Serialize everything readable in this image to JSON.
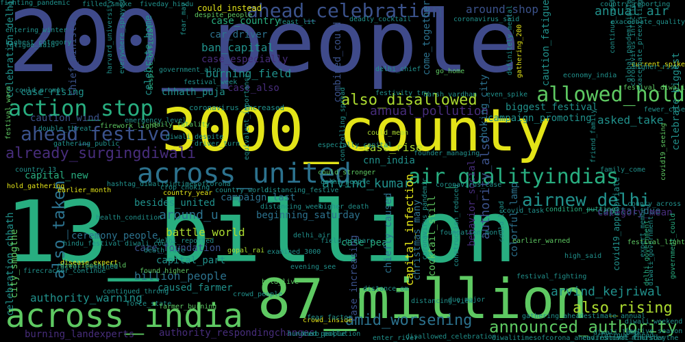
{
  "words": [
    {
      "text": "200_people",
      "color": "c-in",
      "icon": null
    },
    {
      "text": "13_billion",
      "color": "c-gr",
      "icon": null
    },
    {
      "text": "3000_county",
      "color": "c-ye",
      "icon": null
    },
    {
      "text": "87_million",
      "color": "c-lg",
      "icon": null
    },
    {
      "text": "across_india",
      "color": "c-lg",
      "icon": null
    },
    {
      "text": "across_united",
      "color": "c-tl",
      "icon": null
    },
    {
      "text": "action_stop",
      "color": "c-gr",
      "icon": null
    },
    {
      "text": "ahead_celebration",
      "color": "c-bl",
      "icon": null
    },
    {
      "text": "ahead_festive",
      "color": "c-bl",
      "icon": null
    },
    {
      "text": "already_surgingdiwali",
      "color": "c-pu",
      "icon": null
    },
    {
      "text": "allowed_hold",
      "color": "c-lg",
      "icon": null
    },
    {
      "text": "air_qualityindias",
      "color": "c-gr",
      "icon": null
    },
    {
      "text": "airnew_delhi",
      "color": "c-tq",
      "icon": null
    },
    {
      "text": "also_disallowed",
      "color": "c-yg",
      "icon": null
    },
    {
      "text": "announced_authority",
      "color": "c-lg",
      "icon": null
    },
    {
      "text": "also_rising",
      "color": "c-yg",
      "icon": null
    },
    {
      "text": "amid_worsening",
      "color": "c-tl",
      "icon": null
    },
    {
      "text": "arvind_kejriwal",
      "color": "c-tq",
      "icon": null
    },
    {
      "text": "arvind_kumar",
      "color": "c-tq",
      "icon": null
    },
    {
      "text": "also_taken",
      "color": "c-tl",
      "icon": null
    },
    {
      "text": "annual_air",
      "color": "c-tq",
      "icon": null
    },
    {
      "text": "annual_pollution",
      "color": "c-pu",
      "icon": null
    },
    {
      "text": "around_shop",
      "color": "c-bl",
      "icon": null
    },
    {
      "text": "around_u",
      "color": "c-tl",
      "icon": null
    },
    {
      "text": "authority_also",
      "color": "c-bl",
      "icon": null
    },
    {
      "text": "authority_warning",
      "color": "c-tq",
      "icon": null
    },
    {
      "text": "authority_respondingchanges",
      "color": "c-pu",
      "icon": null
    },
    {
      "text": "battle_world",
      "color": "c-yg",
      "icon": null
    },
    {
      "text": "besides_united",
      "color": "c-tq",
      "icon": null
    },
    {
      "text": "biggest_festival",
      "color": "c-tq",
      "icon": null
    },
    {
      "text": "billion_people",
      "color": "c-tl",
      "icon": null
    },
    {
      "text": "burning_field",
      "color": "c-tq",
      "icon": null
    },
    {
      "text": "burning_landexperts",
      "color": "c-pu",
      "icon": null
    },
    {
      "text": "ban_capital",
      "color": "c-tq",
      "icon": null
    },
    {
      "text": "behavior_social",
      "color": "c-pu",
      "icon": null
    },
    {
      "text": "beginning_saturday",
      "color": "c-tl",
      "icon": null
    },
    {
      "text": "campaign_last",
      "color": "c-tl",
      "icon": null
    },
    {
      "text": "campaign_promoting",
      "color": "c-tq",
      "icon": null
    },
    {
      "text": "capital_due",
      "color": "c-tl",
      "icon": null
    },
    {
      "text": "capital_infection",
      "color": "c-ye",
      "icon": null
    },
    {
      "text": "capital_new",
      "color": "c-gr",
      "icon": null
    },
    {
      "text": "capital_part",
      "color": "c-tq",
      "icon": null
    },
    {
      "text": "car_driver",
      "color": "c-tl",
      "icon": null
    },
    {
      "text": "care_foundation",
      "color": "c-bl",
      "icon": null
    },
    {
      "text": "case_country",
      "color": "c-gr",
      "icon": null
    },
    {
      "text": "case_especially",
      "color": "c-pu",
      "icon": null
    },
    {
      "text": "case_rise",
      "color": "c-yg",
      "icon": null
    },
    {
      "text": "case_rising",
      "color": "c-tq",
      "icon": null
    },
    {
      "text": "case_also",
      "color": "c-pu",
      "icon": null
    },
    {
      "text": "case_peak",
      "color": "c-gr",
      "icon": null
    },
    {
      "text": "case_increasing",
      "color": "c-bl",
      "icon": null
    },
    {
      "text": "category_mean",
      "color": "c-pu",
      "icon": null
    },
    {
      "text": "caused_farmer",
      "color": "c-tq",
      "icon": null
    },
    {
      "text": "caution_wind",
      "color": "c-bl",
      "icon": null
    },
    {
      "text": "caution_fatigue",
      "color": "c-tq",
      "icon": null
    },
    {
      "text": "celebrate_home",
      "color": "c-tq",
      "icon": null
    },
    {
      "text": "celebration_delhi",
      "color": "c-tq",
      "icon": null
    },
    {
      "text": "celebration_chhath",
      "color": "c-tq",
      "icon": null
    },
    {
      "text": "celebrate_biggest",
      "color": "c-tq",
      "icon": null
    },
    {
      "text": "ceremony_people",
      "color": "c-tl",
      "icon": null
    },
    {
      "text": "chhath_puja",
      "color": "c-tq",
      "icon": null
    },
    {
      "text": "chief_minister",
      "color": "c-bl",
      "icon": null
    },
    {
      "text": "chiefly_caused",
      "color": "c-tl",
      "icon": null
    },
    {
      "text": "choking_city",
      "color": "c-tl",
      "icon": null
    },
    {
      "text": "christmas_many",
      "color": "c-tl",
      "icon": null
    },
    {
      "text": "city_smogthe",
      "color": "c-lg",
      "icon": null
    },
    {
      "text": "cnn_india",
      "color": "c-tq",
      "icon": null
    },
    {
      "text": "cocktail_still",
      "color": "c-lg",
      "icon": null
    },
    {
      "text": "colorful_lamp",
      "color": "c-tl",
      "icon": null
    },
    {
      "text": "combined_could",
      "color": "c-bl",
      "icon": null
    },
    {
      "text": "come_together",
      "color": "c-tl",
      "icon": null
    },
    {
      "text": "coronavirus_increased",
      "color": "c-tq",
      "icon": null
    },
    {
      "text": "coronavirus_case",
      "color": "c-tq",
      "icon": null
    },
    {
      "text": "could_instead",
      "color": "c-ye",
      "icon": null
    },
    {
      "text": "could_prompt",
      "color": "c-tq",
      "icon": null
    },
    {
      "text": "could_stronger",
      "color": "c-lg",
      "icon": null
    },
    {
      "text": "could_mean",
      "color": "c-yg",
      "icon": null
    },
    {
      "text": "country_year",
      "color": "c-ye",
      "icon": null
    },
    {
      "text": "crowd_inside",
      "color": "c-ye",
      "icon": null
    },
    {
      "text": "crowd_people",
      "color": "c-tq",
      "icon": null
    },
    {
      "text": "daily_fatality",
      "color": "c-lg",
      "icon": null
    },
    {
      "text": "despite_people",
      "color": "c-lg",
      "icon": null
    },
    {
      "text": "despite_official",
      "color": "c-gr",
      "icon": null
    },
    {
      "text": "delhi_chief",
      "color": "c-tq",
      "icon": null
    },
    {
      "text": "delhi_people",
      "color": "c-tq",
      "icon": null
    },
    {
      "text": "festivity_try",
      "color": "c-tq",
      "icon": null
    },
    {
      "text": "festival_diwali",
      "color": "c-lg",
      "icon": null
    },
    {
      "text": "current_spike",
      "color": "c-ye",
      "icon": null
    },
    {
      "text": "asked_take",
      "color": "c-tq",
      "icon": null
    },
    {
      "text": "definitely_mental",
      "color": "c-tq",
      "icon": null
    },
    {
      "text": "continue_used",
      "color": "c-tq",
      "icon": null
    },
    {
      "text": "coronavirus_infection",
      "color": "c-tq",
      "icon": null
    },
    {
      "text": "covid19_appropriate",
      "color": "c-tq",
      "icon": null
    },
    {
      "text": "covid19_seeing",
      "color": "c-lg",
      "icon": null
    },
    {
      "text": "county_across",
      "color": "c-tq",
      "icon": null
    },
    {
      "text": "condition_putting",
      "color": "c-gr",
      "icon": null
    },
    {
      "text": "delhi_government",
      "color": "c-gr",
      "icon": null
    },
    {
      "text": "diwali_weekend",
      "color": "c-tq",
      "icon": null
    },
    {
      "text": "government_could",
      "color": "c-gr",
      "icon": null
    },
    {
      "text": "covid_task",
      "color": "c-tq",
      "icon": null
    },
    {
      "text": "could_lead",
      "color": "c-tq",
      "icon": null
    },
    {
      "text": "crop_choking",
      "color": "c-tq",
      "icon": null
    },
    {
      "text": "country_world",
      "color": "c-tq",
      "icon": null
    },
    {
      "text": "distancing_festive",
      "color": "c-tq",
      "icon": null
    },
    {
      "text": "distancing_week",
      "color": "c-tq",
      "icon": null
    },
    {
      "text": "delhi_air",
      "color": "c-tq",
      "icon": null
    },
    {
      "text": "death_rate",
      "color": "c-tq",
      "icon": null
    },
    {
      "text": "disease_expert",
      "color": "c-ye",
      "icon": null
    },
    {
      "text": "found_higher",
      "color": "c-lg",
      "icon": null
    },
    {
      "text": "hold_live",
      "color": "c-lg",
      "icon": null
    },
    {
      "text": "evening_see",
      "color": "c-tq",
      "icon": null
    },
    {
      "text": "hundred_people",
      "color": "c-tq",
      "icon": null
    },
    {
      "text": "curb_pollution",
      "color": "c-tq",
      "icon": null
    },
    {
      "text": "distance_om",
      "color": "c-tq",
      "icon": null
    },
    {
      "text": "force_state",
      "color": "c-tq",
      "icon": null
    },
    {
      "text": "farmer_burning",
      "color": "c-lg",
      "icon": null
    },
    {
      "text": "gopal_rai",
      "color": "c-yg",
      "icon": null
    },
    {
      "text": "high_said",
      "color": "c-tq",
      "icon": null
    },
    {
      "text": "go_home",
      "color": "c-lg",
      "icon": null
    },
    {
      "text": "even_spike",
      "color": "c-tq",
      "icon": null
    },
    {
      "text": "harsh_vardhan",
      "color": "c-tq",
      "icon": null
    },
    {
      "text": "earlier_warned",
      "color": "c-lg",
      "icon": null
    },
    {
      "text": "earlier_month",
      "color": "c-ye",
      "icon": null
    },
    {
      "text": "hold_gathering",
      "color": "c-ye",
      "icon": null
    },
    {
      "text": "country_13",
      "color": "c-tq",
      "icon": null
    },
    {
      "text": "field_prepare",
      "color": "c-tq",
      "icon": null
    },
    {
      "text": "fear_factor",
      "color": "c-tq",
      "icon": null
    },
    {
      "text": "enter_river",
      "color": "c-tq",
      "icon": null
    },
    {
      "text": "disallowed_celebration",
      "color": "c-tq",
      "icon": null
    },
    {
      "text": "diwalitimesofcorona_ahead",
      "color": "c-tq",
      "icon": null
    },
    {
      "text": "environment_minister",
      "color": "c-tq",
      "icon": null
    },
    {
      "text": "driver_turn",
      "color": "c-tq",
      "icon": null
    },
    {
      "text": "firework_light",
      "color": "c-lg",
      "icon": null
    },
    {
      "text": "emergency_level",
      "color": "c-tq",
      "icon": null
    },
    {
      "text": "double_threat",
      "color": "c-tq",
      "icon": null
    },
    {
      "text": "festival_week",
      "color": "c-tq",
      "icon": null
    },
    {
      "text": "filled_smoke",
      "color": "c-tq",
      "icon": null
    },
    {
      "text": "fiveday_hindu",
      "color": "c-tq",
      "icon": null
    },
    {
      "text": "deadly_cocktail",
      "color": "c-tq",
      "icon": null
    },
    {
      "text": "coronavirus_said",
      "color": "c-tq",
      "icon": null
    },
    {
      "text": "country_reporting",
      "color": "c-tq",
      "icon": null
    },
    {
      "text": "exacerbate_quality",
      "color": "c-tq",
      "icon": null
    },
    {
      "text": "feast_lit",
      "color": "c-tq",
      "icon": null
    },
    {
      "text": "fear_may",
      "color": "c-tq",
      "icon": null
    },
    {
      "text": "government_also",
      "color": "c-tq",
      "icon": null
    },
    {
      "text": "highest_category",
      "color": "c-tq",
      "icon": null
    },
    {
      "text": "fatigue_said",
      "color": "c-tq",
      "icon": null
    },
    {
      "text": "higher_risk",
      "color": "c-tq",
      "icon": null
    },
    {
      "text": "festival_warn",
      "color": "c-lg",
      "icon": null
    },
    {
      "text": "gathering_public",
      "color": "c-tq",
      "icon": null
    },
    {
      "text": "health_condition",
      "color": "c-tq",
      "icon": null
    },
    {
      "text": "hindu_festival",
      "color": "c-tq",
      "icon": null
    },
    {
      "text": "diwali_could",
      "color": "c-tq",
      "icon": null
    },
    {
      "text": "diwalidelhi_hold",
      "color": "c-lg",
      "icon": null
    },
    {
      "text": "firecracker_continue",
      "color": "c-tq",
      "icon": null
    },
    {
      "text": "factor_combined",
      "color": "c-tq",
      "icon": null
    },
    {
      "text": "continued_throng",
      "color": "c-tq",
      "icon": null
    },
    {
      "text": "examined_3000",
      "color": "c-tq",
      "icon": null
    },
    {
      "text": "higher_death",
      "color": "c-tq",
      "icon": null
    },
    {
      "text": "especially_capital",
      "color": "c-tq",
      "icon": null
    },
    {
      "text": "foundation_mont",
      "color": "c-tq",
      "icon": null
    },
    {
      "text": "delhi_reported",
      "color": "c-tq",
      "icon": null
    },
    {
      "text": "diwali_government",
      "color": "c-tq",
      "icon": null
    },
    {
      "text": "diwali_despite",
      "color": "c-tq",
      "icon": null
    },
    {
      "text": "equivalent_importance",
      "color": "c-tq",
      "icon": null
    },
    {
      "text": "controlling_spread",
      "color": "c-tq",
      "icon": null
    },
    {
      "text": "founder_managing",
      "color": "c-tq",
      "icon": null
    },
    {
      "text": "family_come",
      "color": "c-tq",
      "icon": null
    },
    {
      "text": "friend_family",
      "color": "c-tq",
      "icon": null
    },
    {
      "text": "fewer_case",
      "color": "c-tq",
      "icon": null
    },
    {
      "text": "gathering_200",
      "color": "c-ye",
      "icon": null
    },
    {
      "text": "exacerbate_preexisting",
      "color": "c-tq",
      "icon": null
    },
    {
      "text": "global_pandemicindia",
      "color": "c-tq",
      "icon": null
    },
    {
      "text": "everywhere_sprayed",
      "color": "c-tq",
      "icon": null
    },
    {
      "text": "harvard_university",
      "color": "c-tq",
      "icon": null
    },
    {
      "text": "entering_winter",
      "color": "c-tq",
      "icon": null
    },
    {
      "text": "hashtag_diwalisintimesofcorona",
      "color": "c-tq",
      "icon": null
    },
    {
      "text": "festival_light",
      "color": "c-lg",
      "icon": null
    },
    {
      "text": "construction_reduced",
      "color": "c-tq",
      "icon": null
    },
    {
      "text": "coronavirus_pandemic",
      "color": "c-tq",
      "icon": null
    },
    {
      "text": "distancing_view",
      "color": "c-tq",
      "icon": null
    },
    {
      "text": "due_major",
      "color": "c-tq",
      "icon": null
    },
    {
      "text": "economy_india",
      "color": "c-tq",
      "icon": null
    },
    {
      "text": "festival_fighting",
      "color": "c-tq",
      "icon": null
    },
    {
      "text": "expert_member",
      "color": "c-tq",
      "icon": null
    },
    {
      "text": "festival_thursdaythe",
      "color": "c-tq",
      "icon": null
    },
    {
      "text": "festive_season",
      "color": "c-tq",
      "icon": null
    },
    {
      "text": "gathering_ahead",
      "color": "c-tq",
      "icon": null
    },
    {
      "text": "estimate_annual",
      "color": "c-tq",
      "icon": null
    },
    {
      "text": "diwali_lamp",
      "color": "c-tq",
      "icon": null
    },
    {
      "text": "fatigue_ahead",
      "color": "c-tq",
      "icon": null
    },
    {
      "text": "fighting_pandemic",
      "color": "c-tq",
      "icon": null
    }
  ]
}
